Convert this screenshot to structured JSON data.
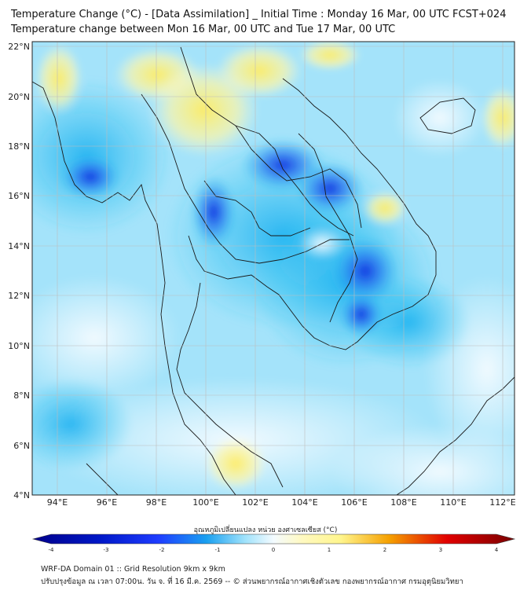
{
  "title_line1": "Temperature Change (°C) - [Data Assimilation] _ Initial Time : Monday 16 Mar, 00 UTC FCST+024",
  "title_line2": "Temperature change between Mon 16 Mar, 00 UTC and Tue 17 Mar, 00 UTC",
  "map": {
    "lon_ticks": [
      "94°E",
      "96°E",
      "98°E",
      "100°E",
      "102°E",
      "104°E",
      "106°E",
      "108°E",
      "110°E",
      "112°E"
    ],
    "lat_ticks": [
      "22°N",
      "20°N",
      "18°N",
      "16°N",
      "14°N",
      "12°N",
      "10°N",
      "8°N",
      "6°N",
      "4°N"
    ],
    "lon_range": [
      93,
      112.5
    ],
    "lat_range": [
      4,
      22.2
    ]
  },
  "colorbar": {
    "label": "อุณหภูมิเปลี่ยนแปลง หน่วย องศาเซลเซียส (°C)",
    "ticks": [
      "-4",
      "-3",
      "-2",
      "-1",
      "0",
      "1",
      "2",
      "3",
      "4"
    ],
    "range": [
      -4,
      4
    ],
    "colors": {
      "dark_blue": "#00008b",
      "blue": "#1e3cff",
      "cyan": "#29c3f0",
      "light_cyan": "#bfeeff",
      "white": "#f4fbff",
      "yellow": "#fff58c",
      "orange": "#f5a000",
      "red": "#e10000",
      "dark_red": "#7a0000"
    }
  },
  "footer_line1": "WRF-DA Domain 01 :: Grid Resolution 9km x 9km",
  "footer_line2": "ปรับปรุงข้อมูล ณ เวลา 07:00น. วัน จ. ที่ 16 มี.ค. 2569 -- © ส่วนพยากรณ์อากาศเชิงตัวเลข กองพยากรณ์อากาศ กรมอุตุนิยมวิทยา"
}
